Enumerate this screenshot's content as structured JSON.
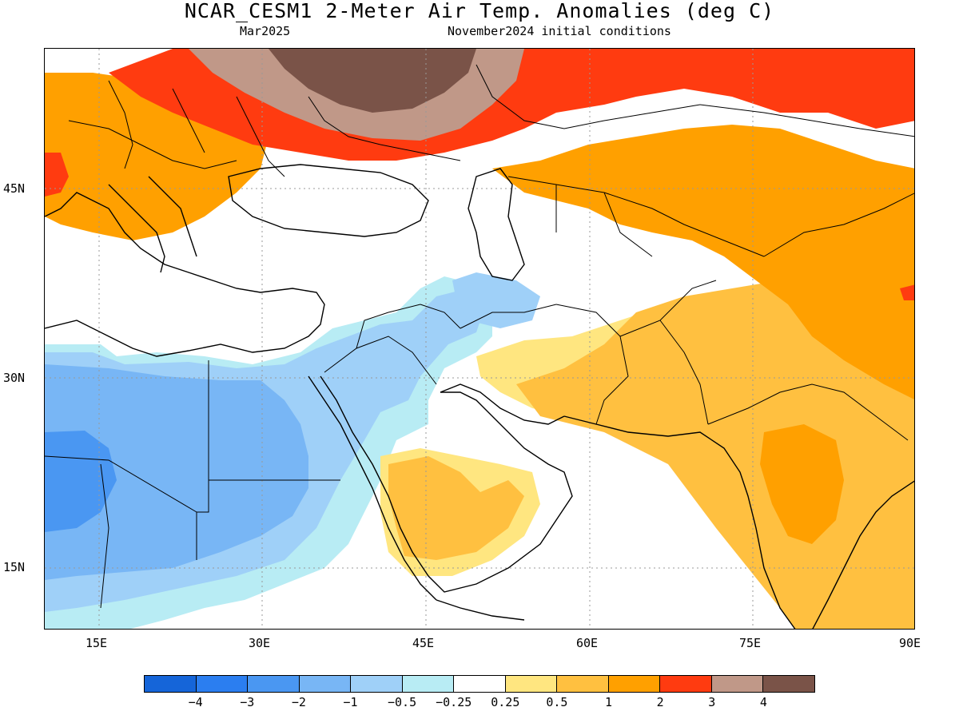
{
  "title": "NCAR_CESM1 2-Meter Air Temp. Anomalies (deg C)",
  "subtitle_left": "Mar2025",
  "subtitle_right": "November2024 initial conditions",
  "lat_labels": [
    "45N",
    "30N",
    "15N"
  ],
  "lon_labels": [
    "15E",
    "30E",
    "45E",
    "60E",
    "75E",
    "90E"
  ],
  "legend": {
    "colors": [
      "#1565d9",
      "#2b7ef0",
      "#4a97f2",
      "#78b6f5",
      "#9fd0f8",
      "#b8ecf4",
      "#ffffff",
      "#ffe680",
      "#ffc040",
      "#ffa000",
      "#ff3b10",
      "#c09888",
      "#7a5348"
    ],
    "labels": [
      "-4",
      "-3",
      "-2",
      "-1",
      "-0.5",
      "-0.25",
      "0.25",
      "0.5",
      "1",
      "2",
      "3",
      "4"
    ]
  },
  "map_colors": {
    "dark_blue": "#4a97f2",
    "mid_blue": "#78b6f5",
    "light_blue": "#9fd0f8",
    "pale_blue": "#b8ecf4",
    "pale_yellow": "#ffe680",
    "light_orange": "#ffc040",
    "orange": "#ffa000",
    "red": "#ff3b10",
    "tan": "#c09888",
    "brown": "#7a5348"
  }
}
